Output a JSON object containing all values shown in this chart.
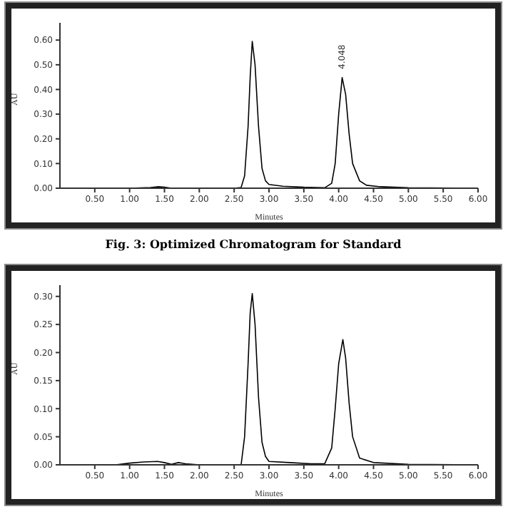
{
  "chart_data": [
    {
      "type": "line",
      "xlabel": "Minutes",
      "ylabel": "AU",
      "xlim": [
        0,
        6
      ],
      "ylim": [
        0,
        0.67
      ],
      "xticks": [
        {
          "value": 0.5,
          "label": "0.50"
        },
        {
          "value": 1,
          "label": "1.00"
        },
        {
          "value": 1.5,
          "label": "1.50"
        },
        {
          "value": 2,
          "label": "2.00"
        },
        {
          "value": 2.5,
          "label": "2.50"
        },
        {
          "value": 3,
          "label": "3.00"
        },
        {
          "value": 3.5,
          "label": "3.50"
        },
        {
          "value": 4,
          "label": "4.00"
        },
        {
          "value": 4.5,
          "label": "4.50"
        },
        {
          "value": 5,
          "label": "5.00"
        },
        {
          "value": 5.5,
          "label": "5.50"
        },
        {
          "value": 6,
          "label": "6.00"
        }
      ],
      "yticks": [
        {
          "value": 0,
          "label": "0.00"
        },
        {
          "value": 0.1,
          "label": "0.10"
        },
        {
          "value": 0.2,
          "label": "0.20"
        },
        {
          "value": 0.3,
          "label": "0.30"
        },
        {
          "value": 0.4,
          "label": "0.40"
        },
        {
          "value": 0.5,
          "label": "0.50"
        },
        {
          "value": 0.6,
          "label": "0.60"
        }
      ],
      "grid": false,
      "marker": "none",
      "line_style": "solid",
      "series": [
        {
          "color": "#000000",
          "x": [
            0,
            0.5,
            1,
            1.3,
            1.4,
            1.5,
            1.6,
            1.7,
            2.5,
            2.6,
            2.65,
            2.7,
            2.73,
            2.76,
            2.8,
            2.85,
            2.9,
            2.95,
            3,
            3.2,
            3.5,
            3.8,
            3.9,
            3.95,
            4,
            4.05,
            4.1,
            4.15,
            4.2,
            4.3,
            4.4,
            4.6,
            5,
            6
          ],
          "values": [
            0,
            0,
            0,
            0.003,
            0.006,
            0.004,
            0,
            0,
            0,
            0.003,
            0.05,
            0.25,
            0.45,
            0.595,
            0.5,
            0.25,
            0.08,
            0.03,
            0.015,
            0.008,
            0.004,
            0.002,
            0.02,
            0.1,
            0.3,
            0.448,
            0.38,
            0.22,
            0.1,
            0.03,
            0.012,
            0.006,
            0.002,
            0
          ]
        }
      ],
      "annotations": [
        {
          "text": "4.048",
          "x": 4.05,
          "y": 0.448
        },
        "Fig. 3: Optimized Chromatogram for Standard"
      ]
    },
    {
      "type": "line",
      "xlabel": "Minutes",
      "ylabel": "AU",
      "xlim": [
        0,
        6
      ],
      "ylim": [
        0,
        0.32
      ],
      "xticks": [
        {
          "value": 0.5,
          "label": "0.50"
        },
        {
          "value": 1,
          "label": "1.00"
        },
        {
          "value": 1.5,
          "label": "1.50"
        },
        {
          "value": 2,
          "label": "2.00"
        },
        {
          "value": 2.5,
          "label": "2.50"
        },
        {
          "value": 3,
          "label": "3.00"
        },
        {
          "value": 3.5,
          "label": "3.50"
        },
        {
          "value": 4,
          "label": "4.00"
        },
        {
          "value": 4.5,
          "label": "4.50"
        },
        {
          "value": 5,
          "label": "5.00"
        },
        {
          "value": 5.5,
          "label": "5.50"
        },
        {
          "value": 6,
          "label": "6.00"
        }
      ],
      "yticks": [
        {
          "value": 0,
          "label": "0.00"
        },
        {
          "value": 0.05,
          "label": "0.05"
        },
        {
          "value": 0.1,
          "label": "0.10"
        },
        {
          "value": 0.15,
          "label": "0.15"
        },
        {
          "value": 0.2,
          "label": "0.20"
        },
        {
          "value": 0.25,
          "label": "0.25"
        },
        {
          "value": 0.3,
          "label": "0.30"
        }
      ],
      "grid": false,
      "marker": "none",
      "line_style": "solid",
      "series": [
        {
          "color": "#000000",
          "x": [
            0,
            0.8,
            1,
            1.2,
            1.4,
            1.5,
            1.6,
            1.7,
            1.8,
            2,
            2.6,
            2.65,
            2.7,
            2.73,
            2.76,
            2.8,
            2.85,
            2.9,
            2.95,
            3,
            3.3,
            3.6,
            3.8,
            3.9,
            3.95,
            4,
            4.06,
            4.1,
            4.15,
            4.2,
            4.3,
            4.5,
            5,
            6
          ],
          "values": [
            0,
            0,
            0.003,
            0.005,
            0.006,
            0.004,
            0.001,
            0.004,
            0.002,
            0,
            0,
            0.05,
            0.18,
            0.27,
            0.305,
            0.25,
            0.12,
            0.04,
            0.015,
            0.006,
            0.004,
            0.002,
            0.002,
            0.03,
            0.1,
            0.18,
            0.223,
            0.19,
            0.11,
            0.05,
            0.012,
            0.004,
            0.001,
            0
          ]
        }
      ]
    }
  ]
}
